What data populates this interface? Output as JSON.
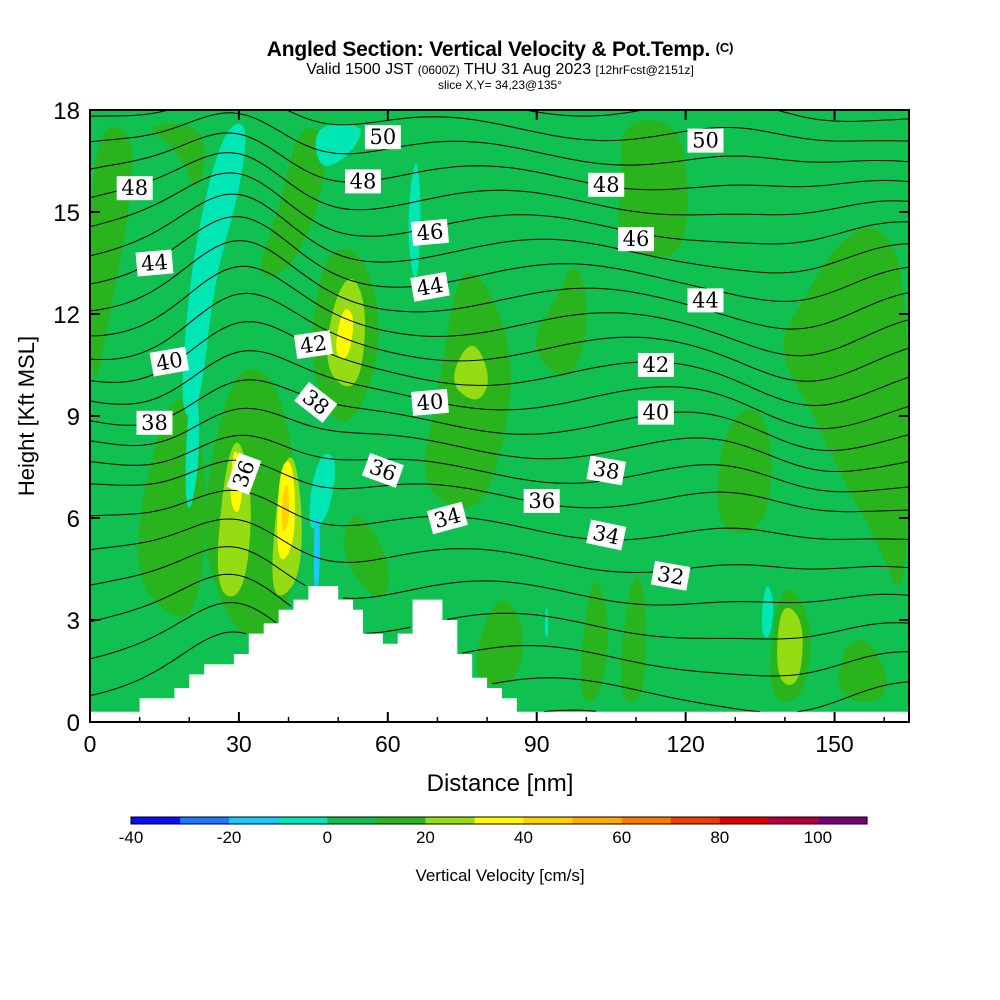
{
  "chart_data": {
    "type": "heatmap",
    "title": "Angled Section: Vertical Velocity & Pot.Temp.",
    "title_unit": "(C)",
    "subtitle_parts": [
      "Valid 1500 JST",
      "(0600Z)",
      "THU 31 Aug 2023",
      "[12hrFcst@2151z]"
    ],
    "slice_label": "slice X,Y= 34,23@135°",
    "xlabel": "Distance [nm]",
    "ylabel": "Height [Kft MSL]",
    "xlim": [
      0,
      165
    ],
    "ylim": [
      0,
      18
    ],
    "x_ticks": [
      0,
      30,
      60,
      90,
      120,
      150
    ],
    "y_ticks": [
      0,
      3,
      6,
      9,
      12,
      15,
      18
    ],
    "colorbar": {
      "label": "Vertical Velocity [cm/s]",
      "range": [
        -40,
        110
      ],
      "step": 10,
      "tick_values": [
        -40,
        -20,
        0,
        20,
        40,
        60,
        80,
        100
      ],
      "colors": [
        "#0a0aff",
        "#1e78ff",
        "#19c8ff",
        "#00e6b4",
        "#10c050",
        "#29b41e",
        "#96dc14",
        "#fffa00",
        "#ffd200",
        "#ffaa00",
        "#ff7800",
        "#f03c00",
        "#dc0000",
        "#b4003c",
        "#780078"
      ]
    },
    "background_class": "0 to 10",
    "velocity_areas": [
      {
        "class": "10 to 20",
        "points": [
          [
            0,
            9
          ],
          [
            4,
            12
          ],
          [
            8,
            15
          ],
          [
            9,
            17.5
          ],
          [
            0,
            17.5
          ]
        ]
      },
      {
        "class": "10 to 20",
        "points": [
          [
            10,
            17.6
          ],
          [
            18,
            16.8
          ],
          [
            22,
            15.3
          ],
          [
            24,
            17.6
          ]
        ]
      },
      {
        "class": "10 to 20",
        "points": [
          [
            8,
            4.5
          ],
          [
            14,
            9
          ],
          [
            20,
            9.8
          ],
          [
            24,
            7
          ],
          [
            22,
            3.2
          ],
          [
            16,
            3
          ]
        ]
      },
      {
        "class": "10 to 20",
        "points": [
          [
            22,
            5.5
          ],
          [
            26,
            9
          ],
          [
            31,
            10.6
          ],
          [
            38,
            10
          ],
          [
            42,
            7
          ],
          [
            41,
            3.6
          ],
          [
            35,
            2.4
          ],
          [
            28,
            2.8
          ]
        ]
      },
      {
        "class": "10 to 20",
        "points": [
          [
            33,
            13
          ],
          [
            38,
            15
          ],
          [
            42,
            17.6
          ],
          [
            48,
            17.3
          ],
          [
            46,
            15
          ],
          [
            40,
            13.2
          ]
        ]
      },
      {
        "class": "10 to 20",
        "points": [
          [
            44,
            10.5
          ],
          [
            46,
            13
          ],
          [
            49,
            14
          ],
          [
            55,
            13.8
          ],
          [
            59,
            11.7
          ],
          [
            56,
            9.5
          ],
          [
            50,
            8.5
          ]
        ]
      },
      {
        "class": "10 to 20",
        "points": [
          [
            50,
            5
          ],
          [
            53,
            6.3
          ],
          [
            58,
            5.5
          ],
          [
            61,
            4.2
          ],
          [
            58,
            3.4
          ]
        ]
      },
      {
        "class": "10 to 20",
        "points": [
          [
            66,
            7
          ],
          [
            70,
            9.5
          ],
          [
            74,
            13.4
          ],
          [
            80,
            13
          ],
          [
            86,
            10.5
          ],
          [
            82,
            7.2
          ],
          [
            76,
            6
          ]
        ]
      },
      {
        "class": "10 to 20",
        "points": [
          [
            88,
            11
          ],
          [
            94,
            12.5
          ],
          [
            98,
            13.7
          ],
          [
            101,
            12
          ],
          [
            97,
            9.8
          ]
        ]
      },
      {
        "class": "10 to 20",
        "points": [
          [
            76,
            1.2
          ],
          [
            82,
            4
          ],
          [
            88,
            2.8
          ],
          [
            86,
            1
          ]
        ]
      },
      {
        "class": "10 to 20",
        "points": [
          [
            98,
            0.6
          ],
          [
            101,
            4.7
          ],
          [
            105,
            3
          ],
          [
            103,
            0.6
          ]
        ]
      },
      {
        "class": "10 to 20",
        "points": [
          [
            106,
            0.6
          ],
          [
            109,
            4.5
          ],
          [
            112,
            4
          ],
          [
            112,
            0.6
          ]
        ]
      },
      {
        "class": "10 to 20",
        "points": [
          [
            106,
            14
          ],
          [
            107,
            16
          ],
          [
            107,
            17.7
          ],
          [
            119,
            17.7
          ],
          [
            121,
            15
          ],
          [
            118,
            13.5
          ]
        ]
      },
      {
        "class": "10 to 20",
        "points": [
          [
            126,
            5.5
          ],
          [
            127,
            8.5
          ],
          [
            134,
            9.5
          ],
          [
            138,
            8
          ],
          [
            136,
            5.6
          ]
        ]
      },
      {
        "class": "10 to 20",
        "points": [
          [
            136,
            0.6
          ],
          [
            139,
            4.4
          ],
          [
            146,
            3
          ],
          [
            144,
            0.6
          ]
        ]
      },
      {
        "class": "10 to 20",
        "points": [
          [
            138,
            11
          ],
          [
            144,
            12.5
          ],
          [
            150,
            14
          ],
          [
            158,
            14.8
          ],
          [
            165,
            13.3
          ],
          [
            165,
            3
          ],
          [
            158,
            5.5
          ],
          [
            152,
            7
          ],
          [
            146,
            9
          ]
        ]
      },
      {
        "class": "10 to 20",
        "points": [
          [
            150,
            0.6
          ],
          [
            152,
            2.4
          ],
          [
            158,
            2.4
          ],
          [
            162,
            0.6
          ]
        ]
      },
      {
        "class": "20 to 30",
        "points": [
          [
            25,
            3.8
          ],
          [
            27,
            7.4
          ],
          [
            30,
            8.6
          ],
          [
            33,
            6.5
          ],
          [
            31,
            3.6
          ]
        ]
      },
      {
        "class": "20 to 30",
        "points": [
          [
            36,
            3.5
          ],
          [
            38,
            7.2
          ],
          [
            41,
            8.1
          ],
          [
            43,
            6
          ],
          [
            42,
            4
          ]
        ]
      },
      {
        "class": "20 to 30",
        "points": [
          [
            47,
            10.3
          ],
          [
            49,
            12.4
          ],
          [
            53,
            13.3
          ],
          [
            56,
            12
          ],
          [
            54,
            9.6
          ]
        ]
      },
      {
        "class": "20 to 30",
        "points": [
          [
            72,
            10
          ],
          [
            77,
            11.4
          ],
          [
            81,
            10.1
          ],
          [
            78,
            9.3
          ]
        ]
      },
      {
        "class": "20 to 30",
        "points": [
          [
            138,
            1.2
          ],
          [
            139,
            3.6
          ],
          [
            144,
            3
          ],
          [
            143,
            1
          ]
        ]
      },
      {
        "class": "30 to 40",
        "points": [
          [
            28,
            6.5
          ],
          [
            29,
            8.3
          ],
          [
            31,
            7.2
          ],
          [
            30,
            6
          ]
        ]
      },
      {
        "class": "30 to 40",
        "points": [
          [
            37.5,
            4.5
          ],
          [
            38,
            7.5
          ],
          [
            41,
            7.8
          ],
          [
            41.5,
            5.2
          ]
        ]
      },
      {
        "class": "30 to 40",
        "points": [
          [
            49,
            10.8
          ],
          [
            51,
            12.3
          ],
          [
            53.5,
            11.9
          ],
          [
            52,
            10.6
          ]
        ]
      },
      {
        "class": "40 to 50",
        "points": [
          [
            38.5,
            5.5
          ],
          [
            38.8,
            6.8
          ],
          [
            40,
            7.1
          ],
          [
            40.2,
            5.8
          ]
        ]
      },
      {
        "class": "-10 to 0",
        "points": [
          [
            18,
            9
          ],
          [
            20,
            13
          ],
          [
            24,
            16
          ],
          [
            28,
            17.6
          ],
          [
            32,
            17.6
          ],
          [
            30,
            15.5
          ],
          [
            25,
            13
          ],
          [
            22,
            9
          ]
        ]
      },
      {
        "class": "-10 to 0",
        "points": [
          [
            19,
            7
          ],
          [
            20,
            6
          ],
          [
            22,
            7.5
          ],
          [
            22,
            9.5
          ],
          [
            20,
            9.8
          ]
        ]
      },
      {
        "class": "-10 to 0",
        "points": [
          [
            44,
            5.5
          ],
          [
            44.5,
            7
          ],
          [
            47,
            8
          ],
          [
            50,
            7.7
          ],
          [
            48,
            6
          ]
        ]
      },
      {
        "class": "-10 to 0",
        "points": [
          [
            45,
            17.6
          ],
          [
            46,
            16.2
          ],
          [
            52,
            16.6
          ],
          [
            56,
            17.6
          ]
        ]
      },
      {
        "class": "-10 to 0",
        "points": [
          [
            64,
            14
          ],
          [
            64.5,
            15.9
          ],
          [
            66,
            16.7
          ],
          [
            66.8,
            14.9
          ],
          [
            65.8,
            12.6
          ]
        ]
      },
      {
        "class": "-10 to 0",
        "points": [
          [
            135,
            2.6
          ],
          [
            136,
            4.2
          ],
          [
            138,
            3.6
          ],
          [
            137,
            2.4
          ]
        ]
      },
      {
        "class": "-10 to 0",
        "points": [
          [
            91.5,
            2.5
          ],
          [
            92,
            3.7
          ],
          [
            92.5,
            2.5
          ]
        ]
      },
      {
        "class": "-20 to -10",
        "points": [
          [
            45,
            3.8
          ],
          [
            45.2,
            6.2
          ],
          [
            46.4,
            6
          ],
          [
            46.2,
            3.9
          ]
        ]
      }
    ],
    "theta_isolines_c": [
      29,
      30,
      31,
      32,
      33,
      34,
      35,
      36,
      37,
      38,
      39,
      40,
      41,
      42,
      43,
      44,
      45,
      46,
      47,
      48,
      49,
      50,
      51,
      52
    ],
    "isoline_labels": [
      {
        "text": "48",
        "x": 9,
        "y": 15.7,
        "angle": 0
      },
      {
        "text": "44",
        "x": 13,
        "y": 13.5,
        "angle": -5
      },
      {
        "text": "40",
        "x": 16,
        "y": 10.6,
        "angle": -10
      },
      {
        "text": "38",
        "x": 13,
        "y": 8.8,
        "angle": 0
      },
      {
        "text": "36",
        "x": 31,
        "y": 7.3,
        "angle": -70
      },
      {
        "text": "42",
        "x": 45,
        "y": 11.1,
        "angle": -8
      },
      {
        "text": "38",
        "x": 45.5,
        "y": 9.4,
        "angle": 38
      },
      {
        "text": "36",
        "x": 59,
        "y": 7.4,
        "angle": 20
      },
      {
        "text": "50",
        "x": 59,
        "y": 17.2,
        "angle": 0
      },
      {
        "text": "48",
        "x": 55,
        "y": 15.9,
        "angle": 0
      },
      {
        "text": "46",
        "x": 68.5,
        "y": 14.4,
        "angle": -5
      },
      {
        "text": "44",
        "x": 68.5,
        "y": 12.8,
        "angle": -10
      },
      {
        "text": "40",
        "x": 68.5,
        "y": 9.4,
        "angle": -5
      },
      {
        "text": "34",
        "x": 72,
        "y": 6,
        "angle": -15
      },
      {
        "text": "36",
        "x": 91,
        "y": 6.5,
        "angle": 0
      },
      {
        "text": "48",
        "x": 104,
        "y": 15.8,
        "angle": 0
      },
      {
        "text": "46",
        "x": 110,
        "y": 14.2,
        "angle": 0
      },
      {
        "text": "50",
        "x": 124,
        "y": 17.1,
        "angle": 0
      },
      {
        "text": "44",
        "x": 124,
        "y": 12.4,
        "angle": 0
      },
      {
        "text": "42",
        "x": 114,
        "y": 10.5,
        "angle": 0
      },
      {
        "text": "40",
        "x": 114,
        "y": 9.1,
        "angle": 0
      },
      {
        "text": "38",
        "x": 104,
        "y": 7.4,
        "angle": 10
      },
      {
        "text": "34",
        "x": 104,
        "y": 5.5,
        "angle": 12
      },
      {
        "text": "32",
        "x": 117,
        "y": 4.3,
        "angle": 10
      }
    ],
    "terrain_profile_kft": [
      [
        0,
        0.3
      ],
      [
        10,
        0.3
      ],
      [
        10,
        0.7
      ],
      [
        15,
        0.7
      ],
      [
        15,
        0.7
      ],
      [
        17,
        0.7
      ],
      [
        17,
        1.0
      ],
      [
        20,
        1.0
      ],
      [
        20,
        1.4
      ],
      [
        23,
        1.4
      ],
      [
        23,
        1.7
      ],
      [
        29,
        1.7
      ],
      [
        29,
        2.0
      ],
      [
        32,
        2.0
      ],
      [
        32,
        2.6
      ],
      [
        35,
        2.6
      ],
      [
        35,
        2.9
      ],
      [
        38,
        2.9
      ],
      [
        38,
        3.3
      ],
      [
        41,
        3.3
      ],
      [
        41,
        3.6
      ],
      [
        44,
        3.6
      ],
      [
        44,
        4.0
      ],
      [
        50,
        4.0
      ],
      [
        50,
        3.6
      ],
      [
        53,
        3.6
      ],
      [
        53,
        3.3
      ],
      [
        55,
        3.3
      ],
      [
        55,
        2.6
      ],
      [
        59,
        2.6
      ],
      [
        59,
        2.3
      ],
      [
        62,
        2.3
      ],
      [
        62,
        2.6
      ],
      [
        65,
        2.6
      ],
      [
        65,
        3.6
      ],
      [
        71,
        3.6
      ],
      [
        71,
        3.0
      ],
      [
        74,
        3.0
      ],
      [
        74,
        2.0
      ],
      [
        77,
        2.0
      ],
      [
        77,
        1.3
      ],
      [
        80,
        1.3
      ],
      [
        80,
        1.0
      ],
      [
        83,
        1.0
      ],
      [
        83,
        0.7
      ],
      [
        86,
        0.7
      ],
      [
        86,
        0.3
      ],
      [
        88,
        0.3
      ],
      [
        88,
        0.3
      ],
      [
        165,
        0.3
      ]
    ]
  }
}
